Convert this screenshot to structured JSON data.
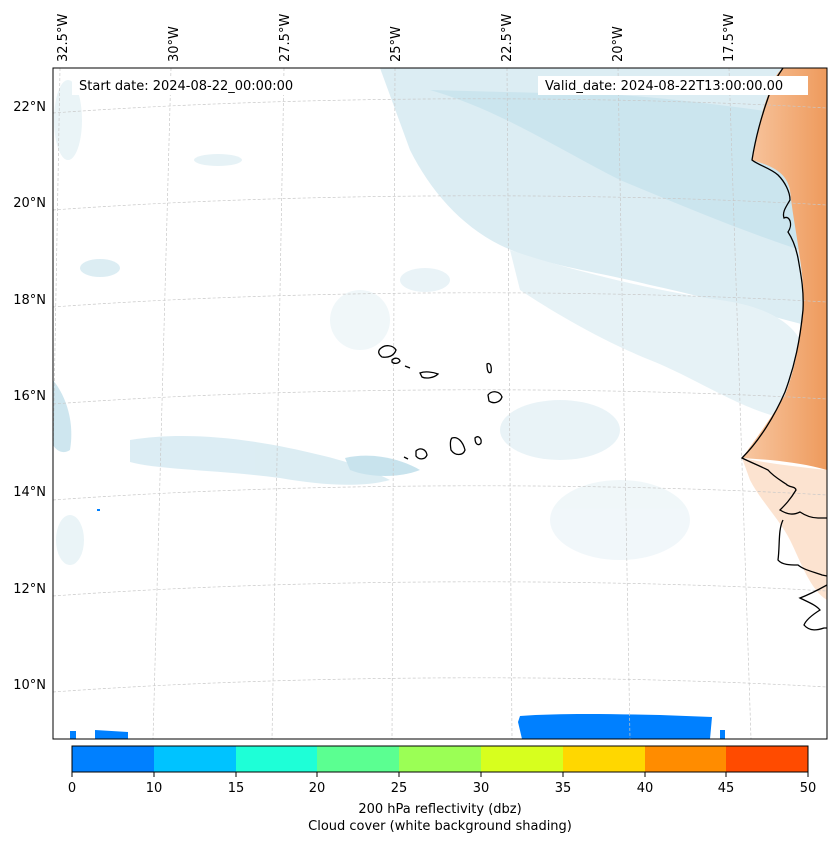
{
  "map": {
    "start_date_text": "Start date: 2024-08-22_00:00:00",
    "valid_date_text": "Valid_date: 2024-08-22T13:00:00.00",
    "lon_labels": [
      "32.5°W",
      "30°W",
      "27.5°W",
      "25°W",
      "22.5°W",
      "20°W",
      "17.5°W"
    ],
    "lat_labels": [
      "22°N",
      "20°N",
      "18°N",
      "16°N",
      "14°N",
      "12°N",
      "10°N"
    ],
    "colors": {
      "cloud": "#d6eaf2",
      "cloud_dark": "#bfdfeb",
      "land_shade": "#f4b183",
      "land_shade_dark": "#ee9a5c",
      "reflectivity_low": "#0080ff",
      "coast": "#000000",
      "grid": "#cccccc"
    }
  },
  "colorbar": {
    "ticks": [
      "0",
      "10",
      "15",
      "20",
      "25",
      "30",
      "35",
      "40",
      "45",
      "50"
    ],
    "segment_colors": [
      "#0080ff",
      "#00c3ff",
      "#1effd7",
      "#5bff91",
      "#9bff55",
      "#d7ff1e",
      "#ffd700",
      "#ff8c00",
      "#ff4b00"
    ],
    "label_line1": "200 hPa reflectivity (dbz)",
    "label_line2": "Cloud cover (white background shading)"
  }
}
